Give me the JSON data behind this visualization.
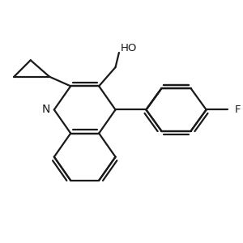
{
  "bg_color": "#ffffff",
  "line_color": "#1a1a1a",
  "line_width": 1.6,
  "fig_size": [
    3.0,
    3.0
  ],
  "dpi": 100,
  "xlim": [
    0,
    10
  ],
  "ylim": [
    0,
    10
  ]
}
